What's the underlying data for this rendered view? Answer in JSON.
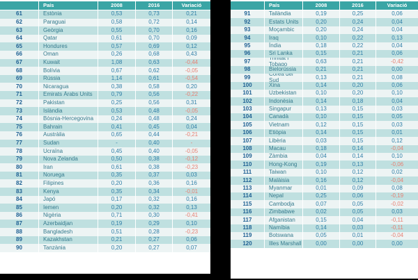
{
  "columns": {
    "rank": "",
    "country": "País",
    "y2008": "2008",
    "y2016": "2016",
    "variation": "Variació"
  },
  "colors": {
    "header_bg": "#3aa5a5",
    "row_teal": "#bfe0e0",
    "row_light": "#edf4f4",
    "rank_text": "#1d5f92",
    "country_text": "#367b8e",
    "value_text": "#2f7ea7",
    "negative_text": "#e87f72",
    "background": "#000000"
  },
  "left_table": {
    "rows": [
      [
        "61",
        "Estònia",
        "0,53",
        "0,73",
        "0,21"
      ],
      [
        "62",
        "Paraguai",
        "0,58",
        "0,72",
        "0,14"
      ],
      [
        "63",
        "Geòrgia",
        "0,55",
        "0,70",
        "0,16"
      ],
      [
        "64",
        "Qatar",
        "0,61",
        "0,70",
        "0,09"
      ],
      [
        "65",
        "Hondures",
        "0,57",
        "0,69",
        "0,12"
      ],
      [
        "66",
        "Oman",
        "0,26",
        "0,68",
        "0,43"
      ],
      [
        "67",
        "Kuwait",
        "1,08",
        "0,63",
        "-0,44"
      ],
      [
        "68",
        "Bolívia",
        "0,67",
        "0,62",
        "-0,05"
      ],
      [
        "69",
        "Rússia",
        "1,14",
        "0,61",
        "-0,54"
      ],
      [
        "70",
        "Nicaragua",
        "0,38",
        "0,58",
        "0,20"
      ],
      [
        "71",
        "Emirats Àrabs Units",
        "0,79",
        "0,56",
        "-0,22"
      ],
      [
        "72",
        "Pakistan",
        "0,25",
        "0,56",
        "0,31"
      ],
      [
        "73",
        "Islàndia",
        "0,53",
        "0,48",
        "-0,05"
      ],
      [
        "74",
        "Bòsnia-Hercegovina",
        "0,24",
        "0,48",
        "0,24"
      ],
      [
        "75",
        "Bahrain",
        "0,41",
        "0,45",
        "0,04"
      ],
      [
        "76",
        "Austràlia",
        "0,65",
        "0,44",
        "-0,21"
      ],
      [
        "77",
        "Sudan",
        "-",
        "0,40",
        "-"
      ],
      [
        "78",
        "Ucraïna",
        "0,45",
        "0,40",
        "-0,05"
      ],
      [
        "79",
        "Nova Zelanda",
        "0,50",
        "0,38",
        "-0,12"
      ],
      [
        "80",
        "Iran",
        "0,61",
        "0,38",
        "-0,23"
      ],
      [
        "81",
        "Noruega",
        "0,35",
        "0,37",
        "0,03"
      ],
      [
        "82",
        "Filipines",
        "0,20",
        "0,36",
        "0,16"
      ],
      [
        "83",
        "Kenya",
        "0,35",
        "0,34",
        "-0,01"
      ],
      [
        "84",
        "Japó",
        "0,17",
        "0,32",
        "0,16"
      ],
      [
        "85",
        "Iemen",
        "0,20",
        "0,32",
        "0,13"
      ],
      [
        "86",
        "Nigèria",
        "0,71",
        "0,30",
        "-0,41"
      ],
      [
        "87",
        "Azerbaidjan",
        "0,19",
        "0,29",
        "0,10"
      ],
      [
        "88",
        "Bangladesh",
        "0,51",
        "0,28",
        "-0,23"
      ],
      [
        "89",
        "Kazakhstan",
        "0,21",
        "0,27",
        "0,06"
      ],
      [
        "90",
        "Tanzània",
        "0,20",
        "0,27",
        "0,07"
      ]
    ]
  },
  "right_table": {
    "rows": [
      [
        "91",
        "Tailàndia",
        "0,19",
        "0,25",
        "0,06"
      ],
      [
        "92",
        "Estats Units",
        "0,20",
        "0,24",
        "0,04"
      ],
      [
        "93",
        "Moçambic",
        "0,20",
        "0,24",
        "0,04"
      ],
      [
        "94",
        "Iraq",
        "0,10",
        "0,22",
        "0,13"
      ],
      [
        "95",
        "Índia",
        "0,18",
        "0,22",
        "0,04"
      ],
      [
        "96",
        "Sri Lanka",
        "0,15",
        "0,21",
        "0,06"
      ],
      [
        "97",
        "Trinitat i Tobago",
        "0,63",
        "0,21",
        "-0,42"
      ],
      [
        "98",
        "Bielorússia",
        "0,21",
        "0,21",
        "0,00"
      ],
      [
        "99",
        "Corea del Sud",
        "0,13",
        "0,21",
        "0,08"
      ],
      [
        "100",
        "Xina",
        "0,14",
        "0,20",
        "0,06"
      ],
      [
        "101",
        "Uzbekistan",
        "0,10",
        "0,20",
        "0,10"
      ],
      [
        "102",
        "Indonèsia",
        "0,14",
        "0,18",
        "0,04"
      ],
      [
        "103",
        "Singapur",
        "0,13",
        "0,15",
        "0,03"
      ],
      [
        "104",
        "Canadà",
        "0,10",
        "0,15",
        "0,05"
      ],
      [
        "105",
        "Vietnam",
        "0,12",
        "0,15",
        "0,03"
      ],
      [
        "106",
        "Etiòpia",
        "0,14",
        "0,15",
        "0,01"
      ],
      [
        "107",
        "Libèria",
        "0,03",
        "0,15",
        "0,12"
      ],
      [
        "108",
        "Macau",
        "0,18",
        "0,14",
        "-0,04"
      ],
      [
        "109",
        "Zàmbia",
        "0,04",
        "0,14",
        "0,10"
      ],
      [
        "110",
        "Hong-Kong",
        "0,19",
        "0,13",
        "-0,06"
      ],
      [
        "111",
        "Taiwan",
        "0,10",
        "0,12",
        "0,02"
      ],
      [
        "112",
        "Malàisia",
        "0,16",
        "0,12",
        "-0,04"
      ],
      [
        "113",
        "Myanmar",
        "0,01",
        "0,09",
        "0,08"
      ],
      [
        "114",
        "Nepal",
        "0,25",
        "0,06",
        "-0,19"
      ],
      [
        "115",
        "Cambodja",
        "0,07",
        "0,05",
        "-0,02"
      ],
      [
        "116",
        "Zimbabwe",
        "0,02",
        "0,05",
        "0,03"
      ],
      [
        "117",
        "Afganistan",
        "0,15",
        "0,04",
        "-0,11"
      ],
      [
        "118",
        "Namíbia",
        "0,14",
        "0,03",
        "-0,11"
      ],
      [
        "119",
        "Botswana",
        "0,05",
        "0,01",
        "-0,04"
      ],
      [
        "120",
        "Illes Marshall",
        "0,00",
        "0,00",
        "0,00"
      ]
    ]
  }
}
